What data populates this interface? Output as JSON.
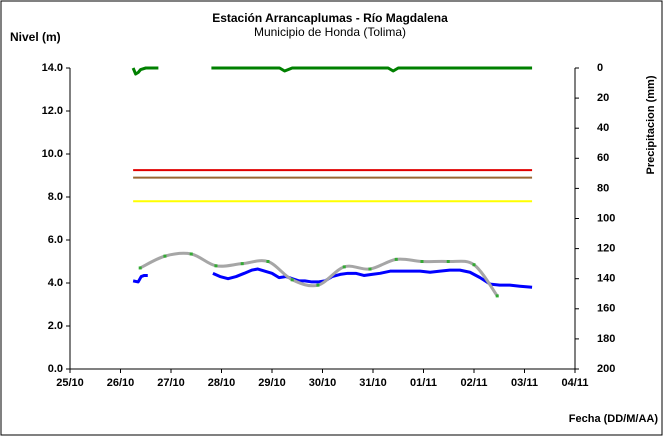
{
  "chart_data": {
    "type": "line",
    "title": "Estación Arrancaplumas - Río Magdalena",
    "subtitle": "Municipio de Honda (Tolima)",
    "y_label": "Nivel (m)",
    "y2_label": "Precipitacion (mm)",
    "x_label": "Fecha (DD/M/AA)",
    "xlim": [
      0,
      10
    ],
    "xticks": [
      {
        "value": 0,
        "label": "25/10"
      },
      {
        "value": 1,
        "label": "26/10"
      },
      {
        "value": 2,
        "label": "27/10"
      },
      {
        "value": 3,
        "label": "28/10"
      },
      {
        "value": 4,
        "label": "29/10"
      },
      {
        "value": 5,
        "label": "30/10"
      },
      {
        "value": 6,
        "label": "31/10"
      },
      {
        "value": 7,
        "label": "01/11"
      },
      {
        "value": 8,
        "label": "02/11"
      },
      {
        "value": 9,
        "label": "03/11"
      },
      {
        "value": 10,
        "label": "04/11"
      }
    ],
    "ylim": [
      0,
      14
    ],
    "yticks": [
      {
        "value": 0,
        "label": "0.0"
      },
      {
        "value": 2,
        "label": "2.0"
      },
      {
        "value": 4,
        "label": "4.0"
      },
      {
        "value": 6,
        "label": "6.0"
      },
      {
        "value": 8,
        "label": "8.0"
      },
      {
        "value": 10,
        "label": "10.0"
      },
      {
        "value": 12,
        "label": "12.0"
      },
      {
        "value": 14,
        "label": "14.0"
      }
    ],
    "y2lim": [
      0,
      200
    ],
    "y2ticks": [
      0,
      20,
      40,
      60,
      80,
      100,
      120,
      140,
      160,
      180,
      200
    ],
    "y2_inverted": true,
    "grid": false,
    "reference_lines": [
      {
        "value": 9.25,
        "color": "#e00000",
        "x": [
          1.25,
          9.15
        ]
      },
      {
        "value": 8.9,
        "color": "#996633",
        "x": [
          1.25,
          9.15
        ]
      },
      {
        "value": 7.8,
        "color": "#ffff00",
        "x": [
          1.25,
          9.15
        ]
      }
    ],
    "series": [
      {
        "color": "#0000ff",
        "width": 3,
        "smooth": false,
        "x": [
          1.25,
          1.35,
          1.41,
          1.47,
          1.54,
          2.2,
          2.83,
          2.97,
          3.13,
          3.29,
          3.45,
          3.6,
          3.72,
          3.86,
          4.0,
          4.14,
          4.28,
          4.4,
          4.53,
          4.65,
          4.79,
          4.91,
          5.05,
          5.19,
          5.35,
          5.5,
          5.66,
          5.82,
          5.98,
          6.14,
          6.34,
          6.53,
          6.73,
          6.93,
          7.13,
          7.33,
          7.52,
          7.72,
          7.92,
          8.12,
          8.32,
          8.51,
          8.71,
          8.91,
          9.15
        ],
        "values": [
          4.1,
          4.05,
          4.3,
          4.35,
          4.35,
          null,
          4.45,
          4.3,
          4.2,
          4.3,
          4.45,
          4.6,
          4.65,
          4.55,
          4.45,
          4.25,
          4.3,
          4.2,
          4.1,
          4.1,
          4.05,
          4.05,
          4.1,
          4.3,
          4.4,
          4.45,
          4.45,
          4.35,
          4.4,
          4.45,
          4.55,
          4.55,
          4.55,
          4.55,
          4.5,
          4.55,
          4.6,
          4.6,
          4.5,
          4.25,
          3.95,
          3.9,
          3.9,
          3.85,
          3.8
        ]
      },
      {
        "color": "#a6a6a6",
        "width": 3,
        "smooth": true,
        "marker_color": "#33aa33",
        "x": [
          1.39,
          1.88,
          2.4,
          2.89,
          3.41,
          3.92,
          4.4,
          4.91,
          5.43,
          5.94,
          6.46,
          6.97,
          7.49,
          8.0,
          8.46
        ],
        "values": [
          4.7,
          5.25,
          5.35,
          4.8,
          4.9,
          5.0,
          4.15,
          3.9,
          4.75,
          4.65,
          5.1,
          5.0,
          5.0,
          4.85,
          3.4
        ]
      },
      {
        "color": "#008000",
        "width": 3,
        "smooth": false,
        "axis": "y2",
        "x": [
          1.25,
          1.3,
          1.35,
          1.4,
          1.5,
          1.75,
          2.3,
          2.8,
          4.0,
          4.15,
          4.25,
          4.4,
          6.3,
          6.4,
          6.5,
          9.15
        ],
        "values": [
          0,
          4,
          3,
          1,
          0,
          0,
          null,
          0,
          0,
          0,
          2,
          0,
          0,
          2,
          0,
          0
        ]
      }
    ]
  }
}
